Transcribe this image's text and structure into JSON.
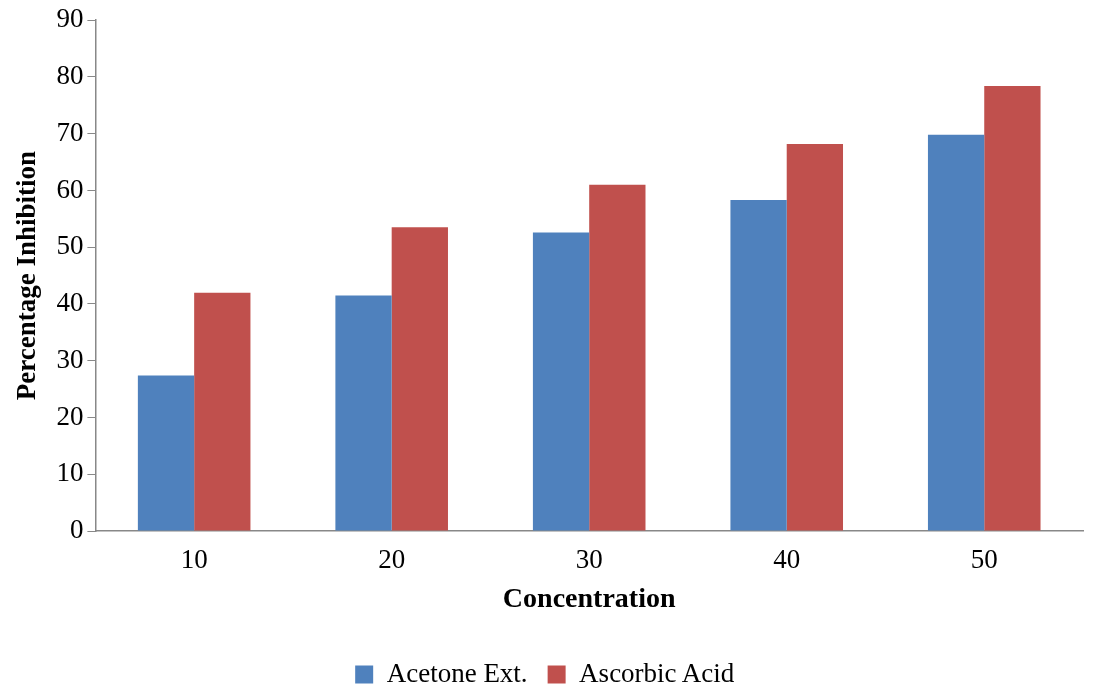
{
  "chart_data": {
    "type": "bar",
    "xlabel": "Concentration",
    "ylabel": "Percentage Inhibition",
    "categories": [
      "10",
      "20",
      "30",
      "40",
      "50"
    ],
    "series": [
      {
        "name": "Acetone Ext.",
        "color": "#4f81bd",
        "values": [
          27.4,
          41.5,
          52.6,
          58.3,
          69.8
        ]
      },
      {
        "name": "Ascorbic Acid",
        "color": "#c0504d",
        "values": [
          42.0,
          53.5,
          61.0,
          68.2,
          78.4
        ]
      }
    ],
    "ylim": [
      0,
      90
    ],
    "yticks": [
      0,
      10,
      20,
      30,
      40,
      50,
      60,
      70,
      80,
      90
    ],
    "grid": false,
    "legend": "bottom"
  }
}
